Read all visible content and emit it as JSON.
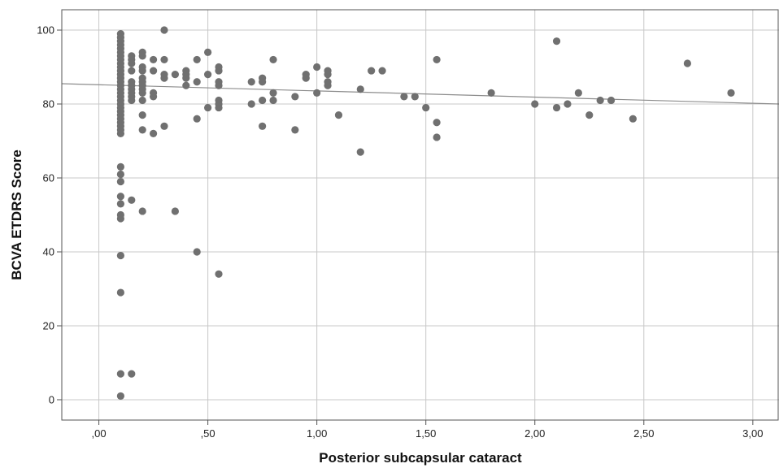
{
  "chart_data": {
    "type": "scatter",
    "xlabel": "Posterior subcapsular cataract",
    "ylabel": "BCVA ETDRS Score",
    "xlim": [
      -0.17,
      3.12
    ],
    "ylim": [
      -5.5,
      105.5
    ],
    "x_ticks": [
      0,
      0.5,
      1.0,
      1.5,
      2.0,
      2.5,
      3.0
    ],
    "x_tick_labels": [
      ",00",
      ",50",
      "1,00",
      "1,50",
      "2,00",
      "2,50",
      "3,00"
    ],
    "y_ticks": [
      0,
      20,
      40,
      60,
      80,
      100
    ],
    "y_tick_labels": [
      "0",
      "20",
      "40",
      "60",
      "80",
      "100"
    ],
    "grid": true,
    "fit_line": {
      "x": [
        -0.17,
        3.12
      ],
      "y": [
        85.5,
        80.0
      ]
    },
    "points": [
      [
        0.1,
        99
      ],
      [
        0.1,
        98
      ],
      [
        0.1,
        97
      ],
      [
        0.1,
        96
      ],
      [
        0.1,
        95
      ],
      [
        0.1,
        94
      ],
      [
        0.1,
        93
      ],
      [
        0.1,
        92
      ],
      [
        0.1,
        91
      ],
      [
        0.1,
        90
      ],
      [
        0.1,
        89
      ],
      [
        0.1,
        88
      ],
      [
        0.1,
        87
      ],
      [
        0.1,
        86
      ],
      [
        0.1,
        85
      ],
      [
        0.1,
        84
      ],
      [
        0.1,
        83
      ],
      [
        0.1,
        82
      ],
      [
        0.1,
        81
      ],
      [
        0.1,
        80
      ],
      [
        0.1,
        79
      ],
      [
        0.1,
        78
      ],
      [
        0.1,
        77
      ],
      [
        0.1,
        76
      ],
      [
        0.1,
        75
      ],
      [
        0.1,
        74
      ],
      [
        0.1,
        73
      ],
      [
        0.1,
        72
      ],
      [
        0.1,
        63
      ],
      [
        0.1,
        61
      ],
      [
        0.1,
        59
      ],
      [
        0.1,
        55
      ],
      [
        0.1,
        53
      ],
      [
        0.1,
        50
      ],
      [
        0.1,
        49
      ],
      [
        0.1,
        39
      ],
      [
        0.1,
        29
      ],
      [
        0.1,
        7
      ],
      [
        0.1,
        1
      ],
      [
        0.15,
        93
      ],
      [
        0.15,
        92
      ],
      [
        0.15,
        91
      ],
      [
        0.15,
        89
      ],
      [
        0.15,
        86
      ],
      [
        0.15,
        85
      ],
      [
        0.15,
        84
      ],
      [
        0.15,
        83
      ],
      [
        0.15,
        82
      ],
      [
        0.15,
        81
      ],
      [
        0.15,
        54
      ],
      [
        0.15,
        7
      ],
      [
        0.2,
        94
      ],
      [
        0.2,
        93
      ],
      [
        0.2,
        90
      ],
      [
        0.2,
        89
      ],
      [
        0.2,
        87
      ],
      [
        0.2,
        86
      ],
      [
        0.2,
        85
      ],
      [
        0.2,
        84
      ],
      [
        0.2,
        83
      ],
      [
        0.2,
        81
      ],
      [
        0.2,
        77
      ],
      [
        0.2,
        73
      ],
      [
        0.2,
        51
      ],
      [
        0.25,
        92
      ],
      [
        0.25,
        89
      ],
      [
        0.25,
        83
      ],
      [
        0.25,
        82
      ],
      [
        0.25,
        72
      ],
      [
        0.3,
        100
      ],
      [
        0.3,
        92
      ],
      [
        0.3,
        88
      ],
      [
        0.3,
        87
      ],
      [
        0.3,
        74
      ],
      [
        0.35,
        88
      ],
      [
        0.35,
        51
      ],
      [
        0.4,
        89
      ],
      [
        0.4,
        88
      ],
      [
        0.4,
        87
      ],
      [
        0.4,
        85
      ],
      [
        0.45,
        92
      ],
      [
        0.45,
        86
      ],
      [
        0.45,
        76
      ],
      [
        0.45,
        40
      ],
      [
        0.5,
        94
      ],
      [
        0.5,
        88
      ],
      [
        0.5,
        79
      ],
      [
        0.55,
        90
      ],
      [
        0.55,
        89
      ],
      [
        0.55,
        86
      ],
      [
        0.55,
        85
      ],
      [
        0.55,
        81
      ],
      [
        0.55,
        80
      ],
      [
        0.55,
        79
      ],
      [
        0.55,
        34
      ],
      [
        0.7,
        86
      ],
      [
        0.7,
        80
      ],
      [
        0.75,
        87
      ],
      [
        0.75,
        86
      ],
      [
        0.75,
        81
      ],
      [
        0.75,
        74
      ],
      [
        0.8,
        92
      ],
      [
        0.8,
        83
      ],
      [
        0.8,
        81
      ],
      [
        0.9,
        82
      ],
      [
        0.9,
        73
      ],
      [
        0.95,
        88
      ],
      [
        0.95,
        87
      ],
      [
        1.0,
        90
      ],
      [
        1.0,
        83
      ],
      [
        1.05,
        89
      ],
      [
        1.05,
        88
      ],
      [
        1.05,
        86
      ],
      [
        1.05,
        85
      ],
      [
        1.1,
        77
      ],
      [
        1.2,
        84
      ],
      [
        1.2,
        67
      ],
      [
        1.25,
        89
      ],
      [
        1.3,
        89
      ],
      [
        1.4,
        82
      ],
      [
        1.45,
        82
      ],
      [
        1.5,
        79
      ],
      [
        1.55,
        92
      ],
      [
        1.55,
        75
      ],
      [
        1.55,
        71
      ],
      [
        1.8,
        83
      ],
      [
        2.0,
        80
      ],
      [
        2.1,
        97
      ],
      [
        2.1,
        79
      ],
      [
        2.15,
        80
      ],
      [
        2.2,
        83
      ],
      [
        2.25,
        77
      ],
      [
        2.3,
        81
      ],
      [
        2.35,
        81
      ],
      [
        2.45,
        76
      ],
      [
        2.7,
        91
      ],
      [
        2.9,
        83
      ]
    ]
  }
}
